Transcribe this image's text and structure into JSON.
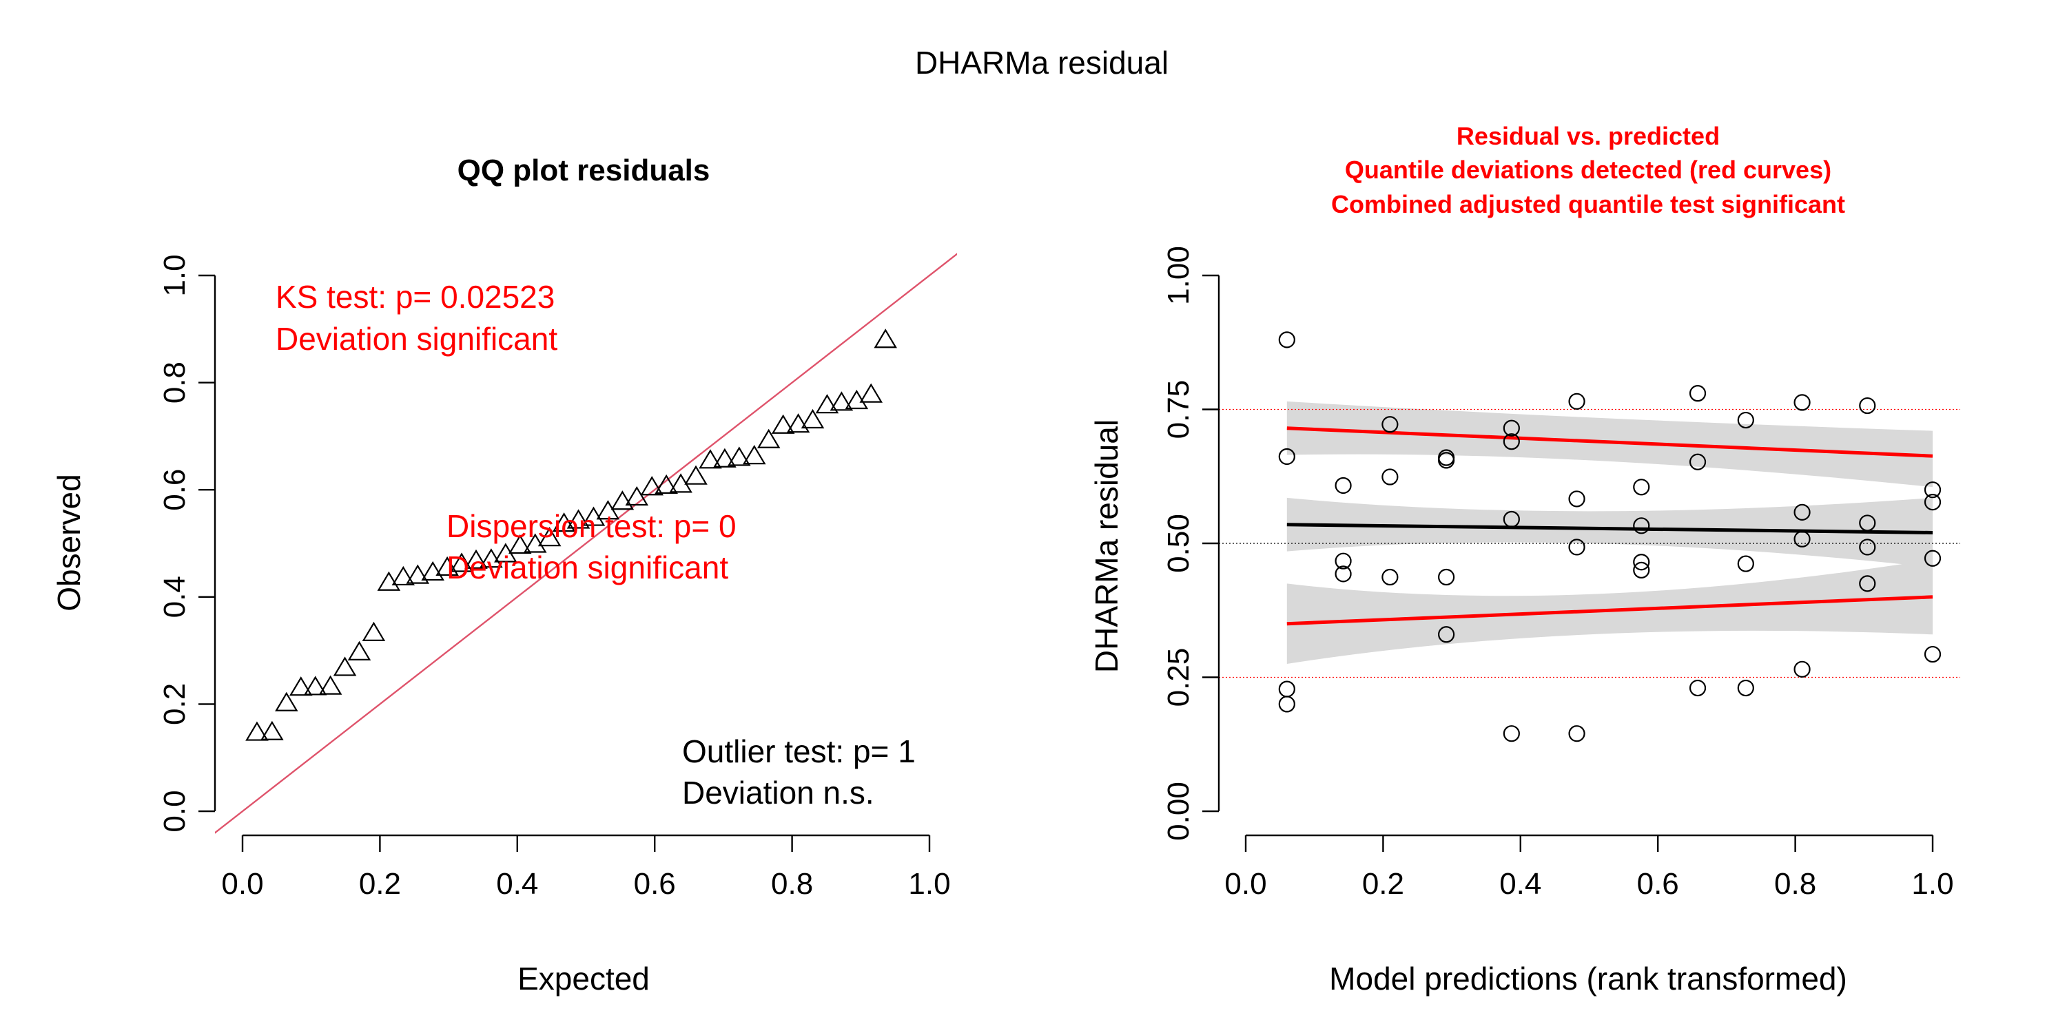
{
  "page_title": "DHARMa residual",
  "colors": {
    "significant": "#ff0000",
    "qq_line": "#df536b",
    "quantile_ref": "#ff0000",
    "median_ref": "#000000",
    "band": "#d9d9d9",
    "points": "#000000"
  },
  "chart_data": [
    {
      "type": "scatter",
      "title": "QQ plot residuals",
      "xlabel": "Expected",
      "ylabel": "Observed",
      "xlim": [
        0,
        1
      ],
      "ylim": [
        0,
        1
      ],
      "xticks": [
        "0.0",
        "0.2",
        "0.4",
        "0.6",
        "0.8",
        "1.0"
      ],
      "yticks": [
        "0.0",
        "0.2",
        "0.4",
        "0.6",
        "0.8",
        "1.0"
      ],
      "marker": "triangle-open",
      "reference_line": {
        "slope": 1,
        "intercept": 0
      },
      "grid": false,
      "annotations": {
        "ks_test": "KS test: p= 0.02523",
        "ks_result": "Deviation  significant",
        "dispersion_test": "Dispersion test: p= 0",
        "dispersion_result": "Deviation  significant",
        "outlier_test": "Outlier test: p= 1",
        "outlier_result": "Deviation  n.s."
      },
      "points": [
        {
          "x": 0.021,
          "y": 0.147
        },
        {
          "x": 0.043,
          "y": 0.148
        },
        {
          "x": 0.064,
          "y": 0.202
        },
        {
          "x": 0.085,
          "y": 0.231
        },
        {
          "x": 0.106,
          "y": 0.232
        },
        {
          "x": 0.128,
          "y": 0.233
        },
        {
          "x": 0.149,
          "y": 0.268
        },
        {
          "x": 0.17,
          "y": 0.297
        },
        {
          "x": 0.191,
          "y": 0.333
        },
        {
          "x": 0.213,
          "y": 0.427
        },
        {
          "x": 0.234,
          "y": 0.437
        },
        {
          "x": 0.255,
          "y": 0.44
        },
        {
          "x": 0.277,
          "y": 0.446
        },
        {
          "x": 0.298,
          "y": 0.455
        },
        {
          "x": 0.319,
          "y": 0.462
        },
        {
          "x": 0.34,
          "y": 0.468
        },
        {
          "x": 0.362,
          "y": 0.47
        },
        {
          "x": 0.383,
          "y": 0.48
        },
        {
          "x": 0.404,
          "y": 0.496
        },
        {
          "x": 0.426,
          "y": 0.498
        },
        {
          "x": 0.447,
          "y": 0.51
        },
        {
          "x": 0.468,
          "y": 0.537
        },
        {
          "x": 0.489,
          "y": 0.543
        },
        {
          "x": 0.511,
          "y": 0.548
        },
        {
          "x": 0.532,
          "y": 0.56
        },
        {
          "x": 0.553,
          "y": 0.578
        },
        {
          "x": 0.574,
          "y": 0.586
        },
        {
          "x": 0.596,
          "y": 0.605
        },
        {
          "x": 0.617,
          "y": 0.608
        },
        {
          "x": 0.638,
          "y": 0.61
        },
        {
          "x": 0.66,
          "y": 0.625
        },
        {
          "x": 0.681,
          "y": 0.655
        },
        {
          "x": 0.702,
          "y": 0.657
        },
        {
          "x": 0.723,
          "y": 0.66
        },
        {
          "x": 0.745,
          "y": 0.663
        },
        {
          "x": 0.766,
          "y": 0.693
        },
        {
          "x": 0.787,
          "y": 0.72
        },
        {
          "x": 0.809,
          "y": 0.722
        },
        {
          "x": 0.83,
          "y": 0.73
        },
        {
          "x": 0.851,
          "y": 0.758
        },
        {
          "x": 0.872,
          "y": 0.763
        },
        {
          "x": 0.894,
          "y": 0.766
        },
        {
          "x": 0.915,
          "y": 0.778
        },
        {
          "x": 0.936,
          "y": 0.88
        }
      ]
    },
    {
      "type": "scatter",
      "title_lines": [
        "Residual vs. predicted",
        "Quantile deviations detected (red curves)",
        "Combined adjusted quantile test significant"
      ],
      "xlabel": "Model predictions (rank transformed)",
      "ylabel": "DHARMa residual",
      "xlim": [
        0,
        1
      ],
      "ylim": [
        0,
        1
      ],
      "xticks": [
        "0.0",
        "0.2",
        "0.4",
        "0.6",
        "0.8",
        "1.0"
      ],
      "yticks": [
        "0.00",
        "0.25",
        "0.50",
        "0.75",
        "1.00"
      ],
      "marker": "circle-open",
      "grid": false,
      "reference_lines": [
        0.25,
        0.5,
        0.75
      ],
      "quantile_curves": [
        {
          "quantile": 0.25,
          "color": "#ff0000",
          "line": [
            [
              0.06,
              0.35
            ],
            [
              1.0,
              0.4
            ]
          ],
          "band_upper": [
            [
              0.06,
              0.425
            ],
            [
              0.5,
              0.405
            ],
            [
              1.0,
              0.47
            ]
          ],
          "band_lower": [
            [
              0.06,
              0.275
            ],
            [
              0.5,
              0.33
            ],
            [
              1.0,
              0.33
            ]
          ]
        },
        {
          "quantile": 0.5,
          "color": "#000000",
          "line": [
            [
              0.06,
              0.535
            ],
            [
              1.0,
              0.52
            ]
          ],
          "band_upper": [
            [
              0.06,
              0.585
            ],
            [
              0.5,
              0.56
            ],
            [
              1.0,
              0.585
            ]
          ],
          "band_lower": [
            [
              0.06,
              0.485
            ],
            [
              0.5,
              0.5
            ],
            [
              1.0,
              0.455
            ]
          ]
        },
        {
          "quantile": 0.75,
          "color": "#ff0000",
          "line": [
            [
              0.06,
              0.715
            ],
            [
              1.0,
              0.663
            ]
          ],
          "band_upper": [
            [
              0.06,
              0.765
            ],
            [
              0.5,
              0.735
            ],
            [
              1.0,
              0.71
            ]
          ],
          "band_lower": [
            [
              0.06,
              0.665
            ],
            [
              0.5,
              0.655
            ],
            [
              1.0,
              0.605
            ]
          ]
        }
      ],
      "points": [
        {
          "x": 0.06,
          "y": 0.88
        },
        {
          "x": 0.06,
          "y": 0.662
        },
        {
          "x": 0.06,
          "y": 0.228
        },
        {
          "x": 0.06,
          "y": 0.2
        },
        {
          "x": 0.142,
          "y": 0.608
        },
        {
          "x": 0.142,
          "y": 0.467
        },
        {
          "x": 0.142,
          "y": 0.443
        },
        {
          "x": 0.21,
          "y": 0.722
        },
        {
          "x": 0.21,
          "y": 0.624
        },
        {
          "x": 0.21,
          "y": 0.437
        },
        {
          "x": 0.292,
          "y": 0.66
        },
        {
          "x": 0.292,
          "y": 0.655
        },
        {
          "x": 0.292,
          "y": 0.437
        },
        {
          "x": 0.292,
          "y": 0.33
        },
        {
          "x": 0.387,
          "y": 0.715
        },
        {
          "x": 0.387,
          "y": 0.69
        },
        {
          "x": 0.387,
          "y": 0.545
        },
        {
          "x": 0.387,
          "y": 0.145
        },
        {
          "x": 0.482,
          "y": 0.765
        },
        {
          "x": 0.482,
          "y": 0.583
        },
        {
          "x": 0.482,
          "y": 0.493
        },
        {
          "x": 0.482,
          "y": 0.145
        },
        {
          "x": 0.576,
          "y": 0.605
        },
        {
          "x": 0.576,
          "y": 0.533
        },
        {
          "x": 0.576,
          "y": 0.465
        },
        {
          "x": 0.576,
          "y": 0.45
        },
        {
          "x": 0.658,
          "y": 0.78
        },
        {
          "x": 0.658,
          "y": 0.652
        },
        {
          "x": 0.658,
          "y": 0.23
        },
        {
          "x": 0.728,
          "y": 0.73
        },
        {
          "x": 0.728,
          "y": 0.462
        },
        {
          "x": 0.728,
          "y": 0.23
        },
        {
          "x": 0.81,
          "y": 0.763
        },
        {
          "x": 0.81,
          "y": 0.558
        },
        {
          "x": 0.81,
          "y": 0.508
        },
        {
          "x": 0.81,
          "y": 0.265
        },
        {
          "x": 0.905,
          "y": 0.757
        },
        {
          "x": 0.905,
          "y": 0.538
        },
        {
          "x": 0.905,
          "y": 0.493
        },
        {
          "x": 0.905,
          "y": 0.425
        },
        {
          "x": 1.0,
          "y": 0.6
        },
        {
          "x": 1.0,
          "y": 0.577
        },
        {
          "x": 1.0,
          "y": 0.472
        },
        {
          "x": 1.0,
          "y": 0.293
        }
      ]
    }
  ]
}
